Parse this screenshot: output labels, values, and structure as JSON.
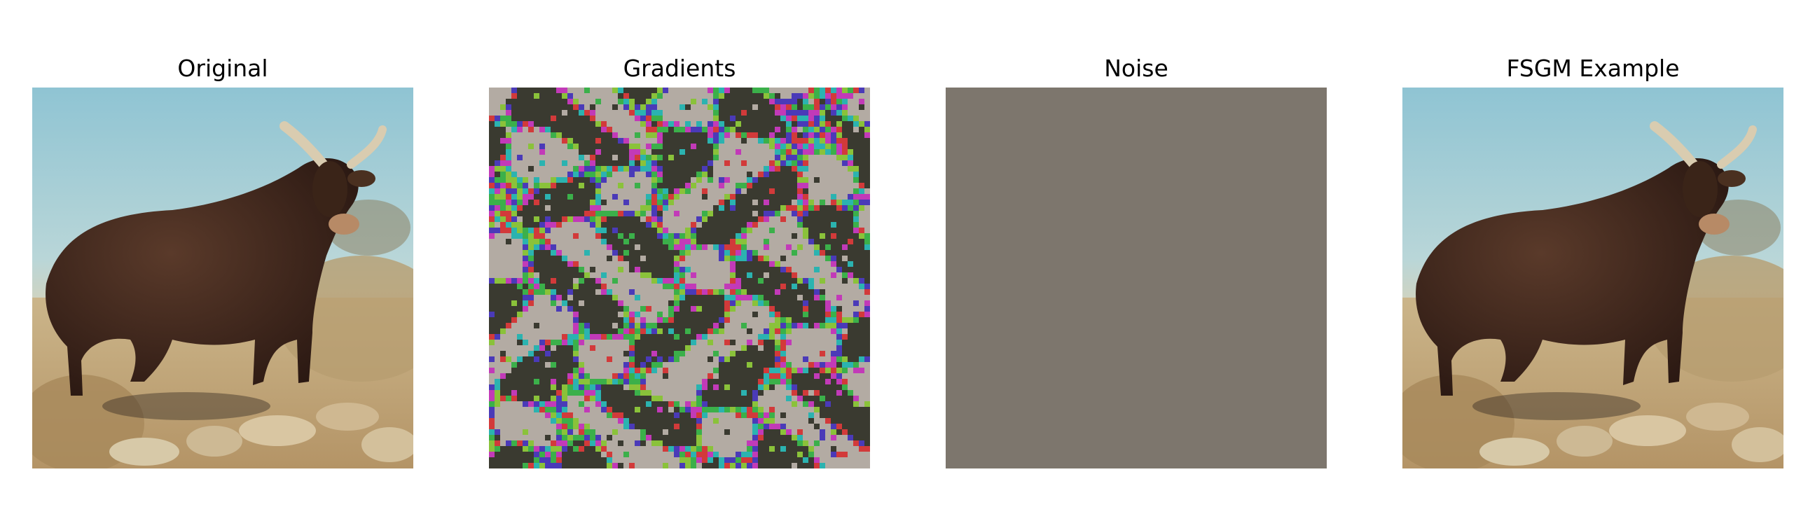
{
  "figure": {
    "panels": [
      {
        "title": "Original",
        "image": "photo of a dark brown bull standing on rocky desert ground with dry shrubs and blue sky"
      },
      {
        "title": "Gradients",
        "image": "multicolored noisy gradient sign pattern"
      },
      {
        "title": "Noise",
        "image": "uniform gray-brown square"
      },
      {
        "title": "FSGM Example",
        "image": "photo of the same bull with adversarial perturbation applied"
      }
    ],
    "noise_color": "#7d766d"
  }
}
